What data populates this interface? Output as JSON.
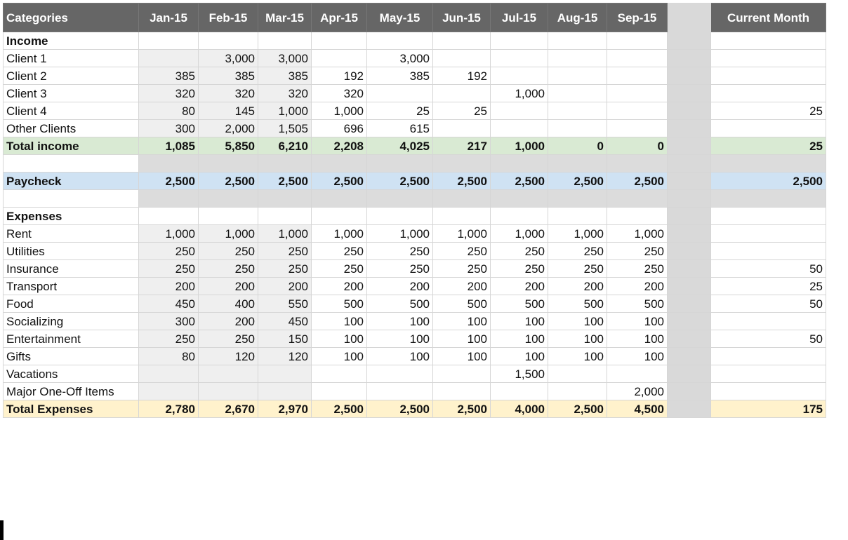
{
  "columns": [
    "Categories",
    "Jan-15",
    "Feb-15",
    "Mar-15",
    "Apr-15",
    "May-15",
    "Jun-15",
    "Jul-15",
    "Aug-15",
    "Sep-15",
    "",
    "Current Month"
  ],
  "rows": [
    {
      "kind": "section",
      "label": "Income",
      "cells": [
        "",
        "",
        "",
        "",
        "",
        "",
        "",
        "",
        ""
      ],
      "current": ""
    },
    {
      "kind": "data",
      "label": "Client 1",
      "cells": [
        "",
        "3,000",
        "3,000",
        "",
        "3,000",
        "",
        "",
        "",
        ""
      ],
      "current": ""
    },
    {
      "kind": "data",
      "label": "Client 2",
      "cells": [
        "385",
        "385",
        "385",
        "192",
        "385",
        "192",
        "",
        "",
        ""
      ],
      "current": ""
    },
    {
      "kind": "data",
      "label": "Client 3",
      "cells": [
        "320",
        "320",
        "320",
        "320",
        "",
        "",
        "1,000",
        "",
        ""
      ],
      "current": ""
    },
    {
      "kind": "data",
      "label": "Client 4",
      "cells": [
        "80",
        "145",
        "1,000",
        "1,000",
        "25",
        "25",
        "",
        "",
        ""
      ],
      "current": "25"
    },
    {
      "kind": "data",
      "label": "Other Clients",
      "cells": [
        "300",
        "2,000",
        "1,505",
        "696",
        "615",
        "",
        "",
        "",
        ""
      ],
      "current": ""
    },
    {
      "kind": "income",
      "label": "Total income",
      "cells": [
        "1,085",
        "5,850",
        "6,210",
        "2,208",
        "4,025",
        "217",
        "1,000",
        "0",
        "0"
      ],
      "current": "25"
    },
    {
      "kind": "gray",
      "label": "",
      "cells": [
        "",
        "",
        "",
        "",
        "",
        "",
        "",
        "",
        ""
      ],
      "current": ""
    },
    {
      "kind": "pay",
      "label": "Paycheck",
      "cells": [
        "2,500",
        "2,500",
        "2,500",
        "2,500",
        "2,500",
        "2,500",
        "2,500",
        "2,500",
        "2,500"
      ],
      "current": "2,500"
    },
    {
      "kind": "gray",
      "label": "",
      "cells": [
        "",
        "",
        "",
        "",
        "",
        "",
        "",
        "",
        ""
      ],
      "current": ""
    },
    {
      "kind": "section",
      "label": "Expenses",
      "cells": [
        "",
        "",
        "",
        "",
        "",
        "",
        "",
        "",
        ""
      ],
      "current": ""
    },
    {
      "kind": "data",
      "label": "Rent",
      "cells": [
        "1,000",
        "1,000",
        "1,000",
        "1,000",
        "1,000",
        "1,000",
        "1,000",
        "1,000",
        "1,000"
      ],
      "current": ""
    },
    {
      "kind": "data",
      "label": "Utilities",
      "cells": [
        "250",
        "250",
        "250",
        "250",
        "250",
        "250",
        "250",
        "250",
        "250"
      ],
      "current": ""
    },
    {
      "kind": "data",
      "label": "Insurance",
      "cells": [
        "250",
        "250",
        "250",
        "250",
        "250",
        "250",
        "250",
        "250",
        "250"
      ],
      "current": "50"
    },
    {
      "kind": "data",
      "label": "Transport",
      "cells": [
        "200",
        "200",
        "200",
        "200",
        "200",
        "200",
        "200",
        "200",
        "200"
      ],
      "current": "25"
    },
    {
      "kind": "data",
      "label": "Food",
      "cells": [
        "450",
        "400",
        "550",
        "500",
        "500",
        "500",
        "500",
        "500",
        "500"
      ],
      "current": "50"
    },
    {
      "kind": "data",
      "label": "Socializing",
      "cells": [
        "300",
        "200",
        "450",
        "100",
        "100",
        "100",
        "100",
        "100",
        "100"
      ],
      "current": ""
    },
    {
      "kind": "data",
      "label": "Entertainment",
      "cells": [
        "250",
        "250",
        "150",
        "100",
        "100",
        "100",
        "100",
        "100",
        "100"
      ],
      "current": "50"
    },
    {
      "kind": "data",
      "label": "Gifts",
      "cells": [
        "80",
        "120",
        "120",
        "100",
        "100",
        "100",
        "100",
        "100",
        "100"
      ],
      "current": ""
    },
    {
      "kind": "data",
      "label": "Vacations",
      "cells": [
        "",
        "",
        "",
        "",
        "",
        "",
        "1,500",
        "",
        ""
      ],
      "current": ""
    },
    {
      "kind": "data",
      "label": "Major One-Off Items",
      "cells": [
        "",
        "",
        "",
        "",
        "",
        "",
        "",
        "",
        "2,000"
      ],
      "current": ""
    },
    {
      "kind": "exp",
      "label": "Total Expenses",
      "cells": [
        "2,780",
        "2,670",
        "2,970",
        "2,500",
        "2,500",
        "2,500",
        "4,000",
        "2,500",
        "4,500"
      ],
      "current": "175"
    }
  ]
}
